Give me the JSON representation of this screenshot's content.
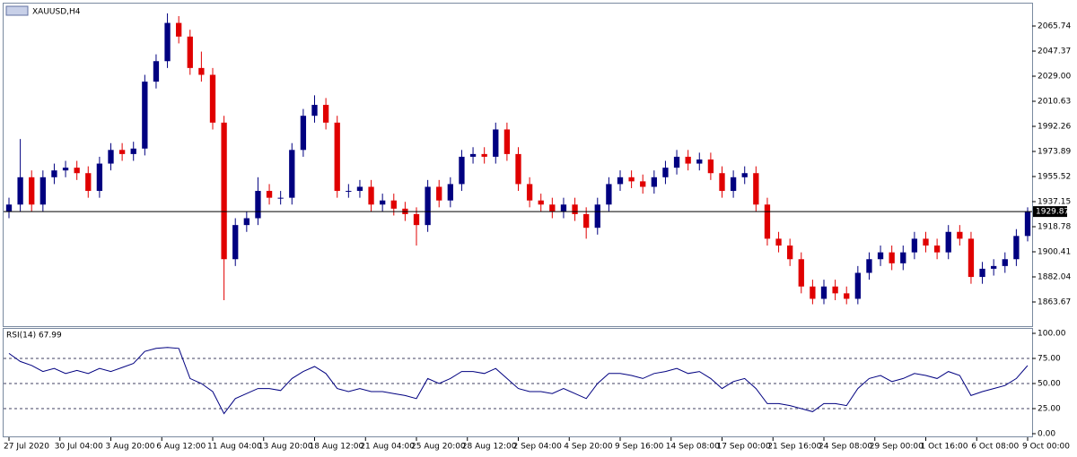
{
  "chart_data": {
    "type": "candlestick",
    "title": "XAUUSD,H4",
    "up_color": "#000080",
    "down_color": "#e00000",
    "rsi_color": "#000080",
    "ylim": [
      1845.3,
      2081.5
    ],
    "yticks": [
      2065.74,
      2047.37,
      {
        "value": 2029,
        "label": "2029.00"
      },
      2010.63,
      1992.26,
      1973.89,
      1955.52,
      1937.15,
      1918.78,
      1900.41,
      1882.04,
      1863.67
    ],
    "open": [
      1930,
      1935,
      1955,
      1935,
      1955,
      1960,
      1962,
      1958,
      1945,
      1965,
      1975,
      1972,
      1976,
      2025,
      2040,
      2068,
      2058,
      2035,
      2030,
      1995,
      1895,
      1920,
      1925,
      1945,
      1940,
      1940,
      1975,
      2000,
      2008,
      1995,
      1945,
      1945,
      1948,
      1935,
      1938,
      1932,
      1928,
      1920,
      1948,
      1938,
      1950,
      1970,
      1972,
      1970,
      1990,
      1972,
      1950,
      1938,
      1935,
      1930,
      1935,
      1928,
      1918,
      1935,
      1950,
      1955,
      1952,
      1948,
      1955,
      1962,
      1970,
      1965,
      1968,
      1958,
      1945,
      1955,
      1958,
      1935,
      1910,
      1905,
      1895,
      1875,
      1866,
      1875,
      1870,
      1866,
      1885,
      1895,
      1900,
      1892,
      1900,
      1910,
      1905,
      1900,
      1915,
      1910,
      1882,
      1888,
      1890,
      1895,
      1912
    ],
    "high": [
      1940,
      1983,
      1960,
      1960,
      1965,
      1967,
      1967,
      1963,
      1970,
      1980,
      1980,
      1981,
      2030,
      2045,
      2075,
      2073,
      2063,
      2047,
      2035,
      2000,
      1925,
      1930,
      1955,
      1950,
      1945,
      1980,
      2005,
      2015,
      2013,
      2000,
      1950,
      1953,
      1953,
      1943,
      1943,
      1937,
      1933,
      1953,
      1953,
      1955,
      1975,
      1977,
      1977,
      1995,
      1995,
      1977,
      1955,
      1943,
      1940,
      1940,
      1940,
      1933,
      1940,
      1955,
      1960,
      1960,
      1957,
      1960,
      1967,
      1975,
      1975,
      1973,
      1973,
      1963,
      1960,
      1963,
      1963,
      1940,
      1915,
      1910,
      1900,
      1880,
      1880,
      1880,
      1875,
      1890,
      1900,
      1905,
      1905,
      1905,
      1915,
      1915,
      1910,
      1920,
      1920,
      1915,
      1893,
      1895,
      1900,
      1917,
      1933
    ],
    "low": [
      1925,
      1930,
      1930,
      1930,
      1950,
      1955,
      1953,
      1940,
      1940,
      1960,
      1967,
      1967,
      1971,
      2020,
      2035,
      2053,
      2030,
      2025,
      1990,
      1865,
      1890,
      1915,
      1920,
      1935,
      1935,
      1935,
      1970,
      1995,
      1990,
      1940,
      1940,
      1940,
      1930,
      1930,
      1927,
      1923,
      1905,
      1915,
      1933,
      1933,
      1945,
      1965,
      1965,
      1965,
      1967,
      1945,
      1933,
      1930,
      1925,
      1925,
      1923,
      1910,
      1913,
      1930,
      1945,
      1947,
      1943,
      1943,
      1950,
      1957,
      1960,
      1960,
      1953,
      1940,
      1940,
      1950,
      1930,
      1905,
      1900,
      1890,
      1870,
      1862,
      1862,
      1865,
      1862,
      1862,
      1880,
      1890,
      1887,
      1887,
      1895,
      1900,
      1895,
      1895,
      1905,
      1877,
      1877,
      1883,
      1885,
      1890,
      1908
    ],
    "close": [
      1935,
      1955,
      1935,
      1955,
      1960,
      1962,
      1958,
      1945,
      1965,
      1975,
      1972,
      1976,
      2025,
      2040,
      2068,
      2058,
      2035,
      2030,
      1995,
      1895,
      1920,
      1925,
      1945,
      1940,
      1940,
      1975,
      2000,
      2008,
      1995,
      1945,
      1945,
      1948,
      1935,
      1938,
      1932,
      1928,
      1920,
      1948,
      1938,
      1950,
      1970,
      1972,
      1970,
      1990,
      1972,
      1950,
      1938,
      1935,
      1930,
      1935,
      1928,
      1918,
      1935,
      1950,
      1955,
      1952,
      1948,
      1955,
      1962,
      1970,
      1965,
      1968,
      1958,
      1945,
      1955,
      1958,
      1935,
      1910,
      1905,
      1895,
      1875,
      1866,
      1875,
      1870,
      1866,
      1885,
      1895,
      1900,
      1892,
      1900,
      1910,
      1905,
      1900,
      1915,
      1910,
      1882,
      1888,
      1890,
      1895,
      1912,
      1929.87
    ],
    "xlabels": [
      "27 Jul 2020",
      "30 Jul 04:00",
      "3 Aug 20:00",
      "6 Aug 12:00",
      "11 Aug 04:00",
      "13 Aug 20:00",
      "18 Aug 12:00",
      "21 Aug 04:00",
      "25 Aug 20:00",
      "28 Aug 12:00",
      "2 Sep 04:00",
      "4 Sep 20:00",
      "9 Sep 16:00",
      "14 Sep 08:00",
      "17 Sep 00:00",
      "21 Sep 16:00",
      "24 Sep 08:00",
      "29 Sep 00:00",
      "1 Oct 16:00",
      "6 Oct 08:00",
      "9 Oct 00:00"
    ],
    "rsi_label": "RSI(14) 67.99",
    "rsi_ylim": [
      0,
      100
    ],
    "rsi_yticks": [
      {
        "value": 100,
        "label": "100.00"
      },
      {
        "value": 75,
        "label": "75.00"
      },
      {
        "value": 50,
        "label": "50.00"
      },
      {
        "value": 25,
        "label": "25.00"
      },
      {
        "value": 0,
        "label": "0.00"
      }
    ],
    "rsi": [
      80,
      72,
      68,
      62,
      65,
      60,
      63,
      60,
      65,
      62,
      66,
      70,
      82,
      85,
      86,
      85,
      55,
      50,
      42,
      20,
      35,
      40,
      45,
      45,
      43,
      55,
      62,
      67,
      60,
      45,
      42,
      45,
      42,
      42,
      40,
      38,
      35,
      55,
      50,
      55,
      62,
      62,
      60,
      65,
      55,
      45,
      42,
      42,
      40,
      45,
      40,
      35,
      50,
      60,
      60,
      58,
      55,
      60,
      62,
      65,
      60,
      62,
      55,
      45,
      52,
      55,
      45,
      30,
      30,
      28,
      25,
      22,
      30,
      30,
      28,
      45,
      55,
      58,
      52,
      55,
      60,
      58,
      55,
      62,
      58,
      38,
      42,
      45,
      48,
      55,
      67.99
    ]
  }
}
